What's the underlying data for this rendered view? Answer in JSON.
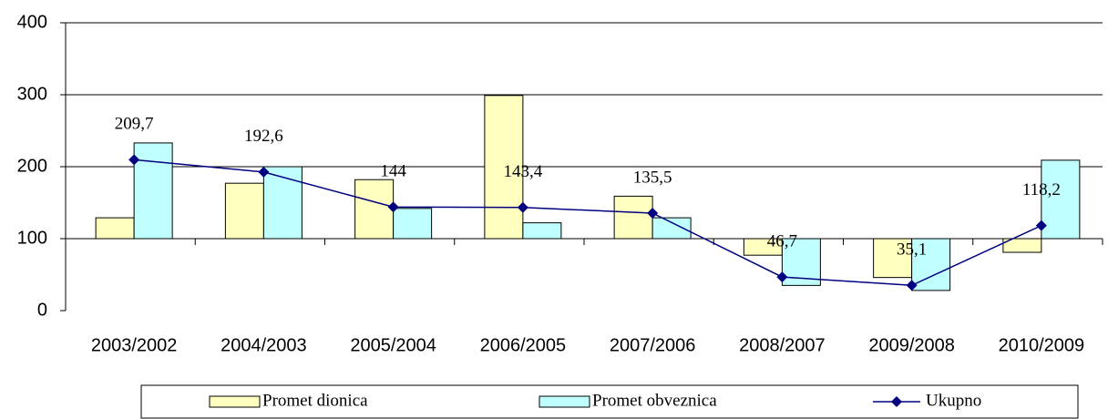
{
  "chart_data": {
    "type": "bar_line",
    "categories": [
      "2003/2002",
      "2004/2003",
      "2005/2004",
      "2006/2005",
      "2007/2006",
      "2008/2007",
      "2009/2008",
      "2010/2009"
    ],
    "series": [
      {
        "name": "Promet dionica",
        "type": "bar",
        "color": "#ffffc0",
        "values": [
          129,
          177,
          182,
          299,
          159,
          77,
          46,
          81
        ]
      },
      {
        "name": "Promet obveznica",
        "type": "bar",
        "color": "#c0ffff",
        "values": [
          233,
          200,
          142,
          122,
          129,
          35,
          28,
          209
        ]
      },
      {
        "name": "Ukupno",
        "type": "line",
        "color": "#000080",
        "values": [
          209.7,
          192.6,
          144,
          143.4,
          135.5,
          46.7,
          35.1,
          118.2
        ],
        "value_labels": [
          "209,7",
          "192,6",
          "144",
          "143,4",
          "135,5",
          "46,7",
          "35,1",
          "118,2"
        ]
      }
    ],
    "ylim": [
      0,
      400
    ],
    "yticks": [
      0,
      100,
      200,
      300,
      400
    ],
    "x_axis_crosses": 100,
    "grid": true,
    "legend": "bottom"
  }
}
